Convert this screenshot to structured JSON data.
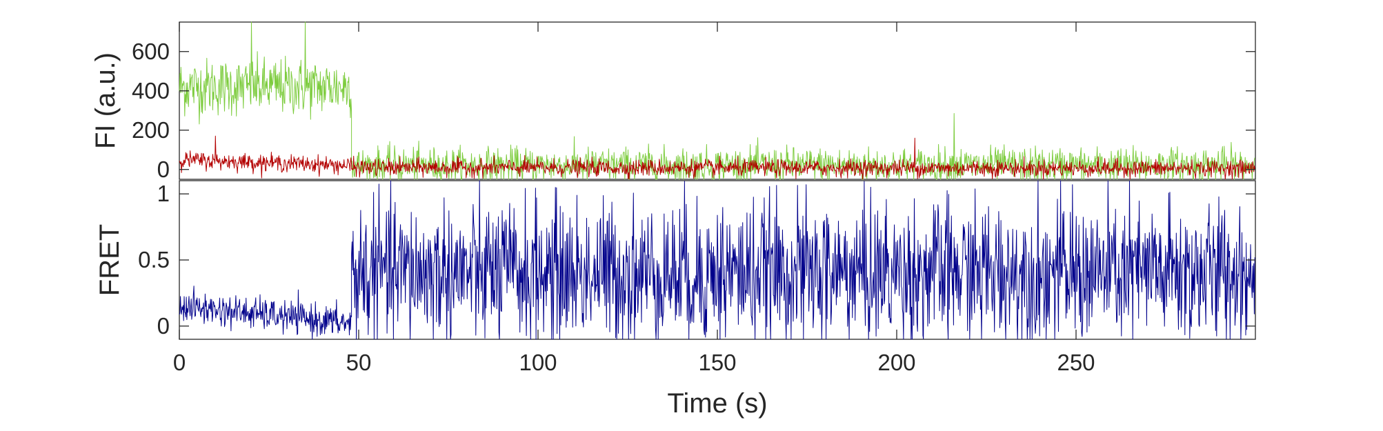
{
  "chart_data": [
    {
      "type": "line",
      "panel": "top",
      "ylabel": "FI (a.u.)",
      "xlim": [
        0,
        300
      ],
      "ylim": [
        -50,
        750
      ],
      "yticks": [
        0,
        200,
        400,
        600
      ],
      "grid": false,
      "series": [
        {
          "color": "#7dcc3e",
          "segments": [
            {
              "x": [
                0,
                48
              ],
              "mean": [
                420,
                420
              ],
              "noise": 120
            },
            {
              "x": [
                48,
                300
              ],
              "mean": [
                20,
                20
              ],
              "noise": 75
            }
          ],
          "spikes": [
            {
              "x": 20,
              "y": 750
            },
            {
              "x": 35,
              "y": 750
            },
            {
              "x": 216,
              "y": 285
            }
          ]
        },
        {
          "color": "#b30000",
          "segments": [
            {
              "x": [
                0,
                48
              ],
              "mean": [
                50,
                20
              ],
              "noise": 35
            },
            {
              "x": [
                48,
                300
              ],
              "mean": [
                10,
                5
              ],
              "noise": 35
            }
          ],
          "spikes": [
            {
              "x": 10,
              "y": 170
            },
            {
              "x": 205,
              "y": 160
            }
          ]
        }
      ]
    },
    {
      "type": "line",
      "panel": "bottom",
      "ylabel": "FRET",
      "xlabel": "Time (s)",
      "xlim": [
        0,
        300
      ],
      "ylim": [
        -0.1,
        1.1
      ],
      "yticks": [
        0,
        0.5,
        1
      ],
      "ytick_labels": [
        "0",
        "0.5",
        "1"
      ],
      "xticks": [
        0,
        50,
        100,
        150,
        200,
        250
      ],
      "grid": false,
      "series": [
        {
          "color": "#00008b",
          "segments": [
            {
              "x": [
                0,
                48
              ],
              "mean": [
                0.15,
                0.02
              ],
              "noise": 0.1,
              "clip": [
                -0.1,
                0.4
              ]
            },
            {
              "x": [
                48,
                300
              ],
              "mean": [
                0.4,
                0.4
              ],
              "noise": 0.45,
              "clip": [
                -0.1,
                1.1
              ]
            }
          ]
        }
      ]
    }
  ]
}
